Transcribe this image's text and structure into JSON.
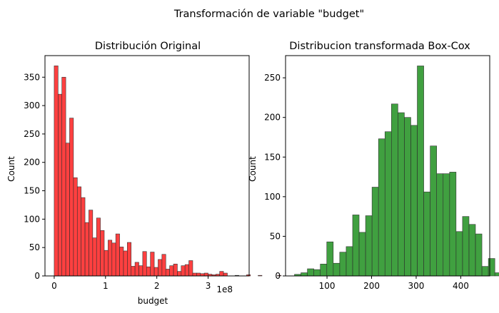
{
  "figure": {
    "suptitle": "Transformación de variable \"budget\""
  },
  "chart_data": [
    {
      "type": "bar",
      "title": "Distribución Original",
      "xlabel": "budget",
      "ylabel": "Count",
      "x_offset_label": "1e8",
      "color": "#ff0000",
      "bar_opacity": 0.75,
      "edge_color": "#333333",
      "xlim": [
        -0.18,
        3.8
      ],
      "ylim": [
        0,
        388
      ],
      "xticks": [
        0,
        1,
        2,
        3
      ],
      "xtick_labels": [
        "0",
        "1",
        "2",
        "3"
      ],
      "yticks": [
        0,
        50,
        100,
        150,
        200,
        250,
        300,
        350
      ],
      "bin_start": 0.0,
      "bin_width": 0.075,
      "values": [
        370,
        320,
        350,
        234,
        278,
        173,
        157,
        138,
        94,
        116,
        67,
        102,
        80,
        45,
        63,
        58,
        74,
        51,
        44,
        59,
        17,
        24,
        18,
        43,
        16,
        42,
        15,
        29,
        38,
        12,
        18,
        21,
        8,
        18,
        20,
        27,
        5,
        5,
        4,
        5,
        3,
        2,
        3,
        8,
        5,
        0,
        0,
        1,
        0,
        0,
        2,
        0,
        0,
        1,
        0,
        0,
        0,
        0,
        1
      ]
    },
    {
      "type": "bar",
      "title": "Distribucion transformada Box-Cox",
      "xlabel": "",
      "ylabel": "Count",
      "color": "#008000",
      "bar_opacity": 0.75,
      "edge_color": "#333333",
      "xlim": [
        7,
        465
      ],
      "ylim": [
        0,
        278
      ],
      "xticks": [
        100,
        200,
        300,
        400
      ],
      "xtick_labels": [
        "100",
        "200",
        "300",
        "400"
      ],
      "yticks": [
        0,
        50,
        100,
        150,
        200,
        250
      ],
      "bin_start": 27.0,
      "bin_width": 14.5,
      "values": [
        2,
        4,
        9,
        8,
        15,
        43,
        16,
        30,
        37,
        77,
        55,
        76,
        112,
        173,
        182,
        217,
        206,
        200,
        190,
        265,
        106,
        164,
        129,
        129,
        131,
        56,
        75,
        65,
        53,
        12,
        22,
        4,
        8
      ]
    }
  ]
}
